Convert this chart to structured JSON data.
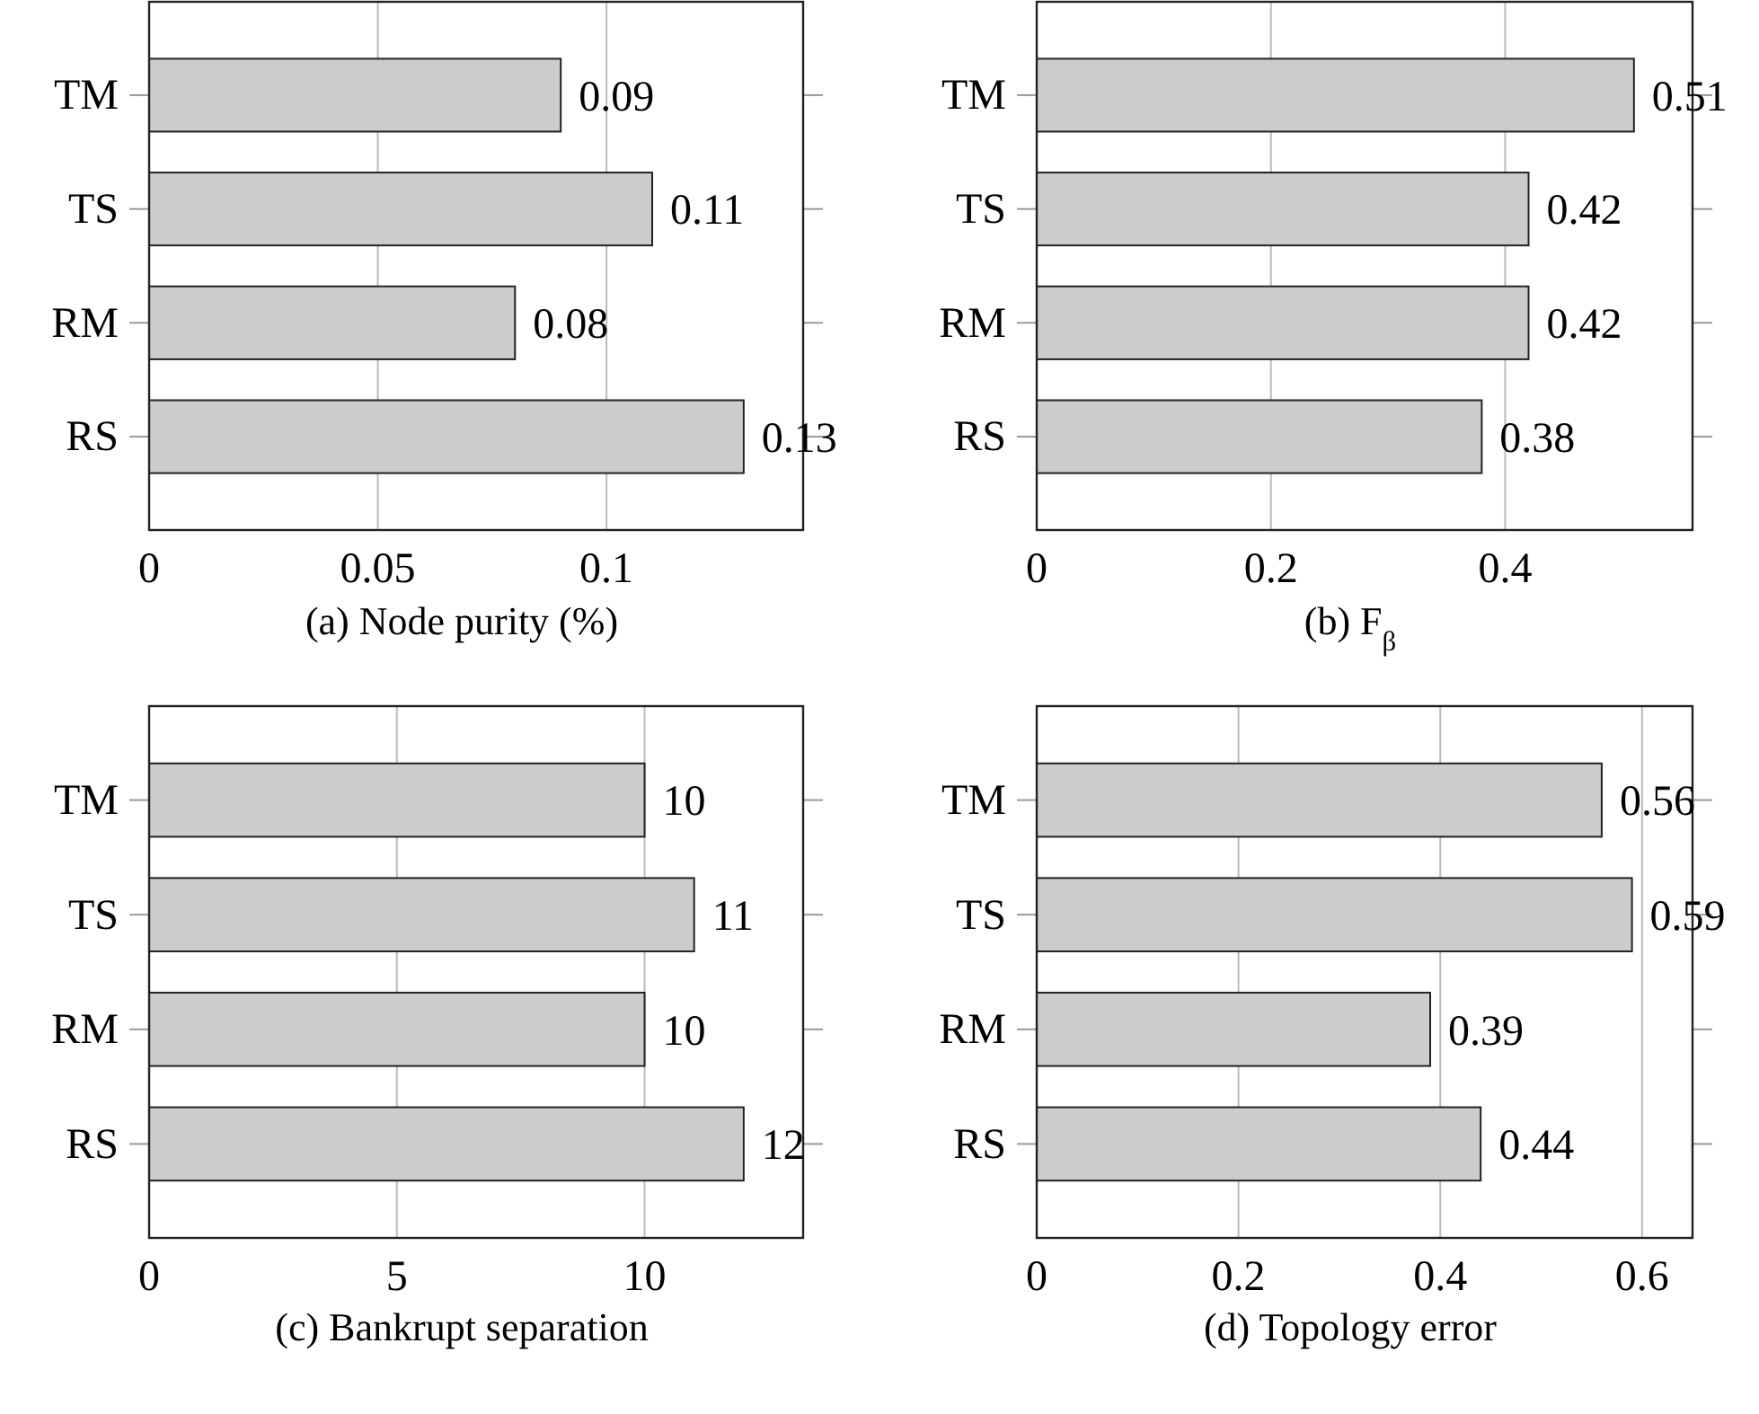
{
  "chart_data": [
    {
      "type": "bar",
      "orientation": "horizontal",
      "title": "(a) Node purity (%)",
      "categories": [
        "TM",
        "TS",
        "RM",
        "RS"
      ],
      "values": [
        0.09,
        0.11,
        0.08,
        0.13
      ],
      "color": "#cccccc",
      "xlim": [
        0,
        0.143
      ],
      "xticks": [
        0,
        0.05,
        0.1
      ],
      "grid": "x",
      "data_labels": true
    },
    {
      "type": "bar",
      "orientation": "horizontal",
      "title": "(b) F$_{β}$",
      "categories": [
        "TM",
        "TS",
        "RM",
        "RS"
      ],
      "values": [
        0.51,
        0.42,
        0.42,
        0.38
      ],
      "color": "#cccccc",
      "xlim": [
        0,
        0.56
      ],
      "xticks": [
        0,
        0.2,
        0.4
      ],
      "grid": "x",
      "data_labels": true
    },
    {
      "type": "bar",
      "orientation": "horizontal",
      "title": "(c) Bankrupt separation",
      "categories": [
        "TM",
        "TS",
        "RM",
        "RS"
      ],
      "values": [
        10,
        11,
        10,
        12
      ],
      "color": "#cccccc",
      "xlim": [
        0,
        13.2
      ],
      "xticks": [
        0,
        5,
        10
      ],
      "grid": "x",
      "data_labels": true
    },
    {
      "type": "bar",
      "orientation": "horizontal",
      "title": "(d) Topology error",
      "categories": [
        "TM",
        "TS",
        "RM",
        "RS"
      ],
      "values": [
        0.56,
        0.59,
        0.39,
        0.44
      ],
      "color": "#cccccc",
      "xlim": [
        0,
        0.65
      ],
      "xticks": [
        0,
        0.2,
        0.4,
        0.6
      ],
      "grid": "x",
      "data_labels": true
    }
  ]
}
